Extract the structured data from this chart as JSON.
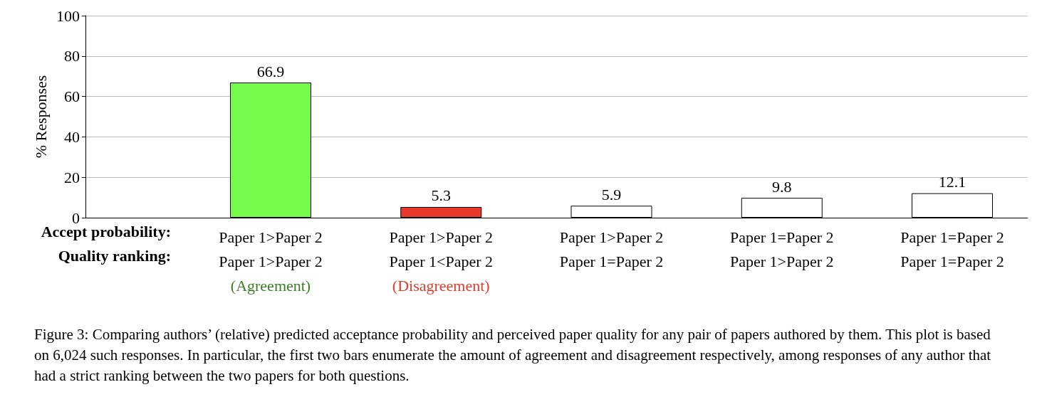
{
  "chart_data": {
    "type": "bar",
    "ylabel": "% Responses",
    "categories": [
      "Paper 1>Paper 2\nPaper 1>Paper 2\n(Agreement)",
      "Paper 1>Paper 2\nPaper 1<Paper 2\n(Disagreement)",
      "Paper 1>Paper 2\nPaper 1=Paper 2",
      "Paper 1=Paper 2\nPaper 1>Paper 2",
      "Paper 1=Paper 2\nPaper 1=Paper 2"
    ],
    "values": [
      66.9,
      5.3,
      5.9,
      9.8,
      12.1
    ],
    "colors": [
      "#77f94b",
      "#e8392a",
      "#ffffff",
      "#ffffff",
      "#ffffff"
    ],
    "ylim": [
      0,
      100
    ],
    "yticks": [
      0,
      20,
      40,
      60,
      80,
      100
    ],
    "grid": "y",
    "data_labels": true,
    "annotations": [
      "Accept probability:",
      "Quality ranking:",
      "Figure 3: Comparing authors’ (relative) predicted acceptance probability and perceived paper quality for any pair of papers authored by them. This plot is based on 6,024 such responses. In particular, the first two bars enumerate the amount of agreement and disagreement respectively, among responses of any author that had a strict ranking between the two papers for both questions."
    ]
  }
}
